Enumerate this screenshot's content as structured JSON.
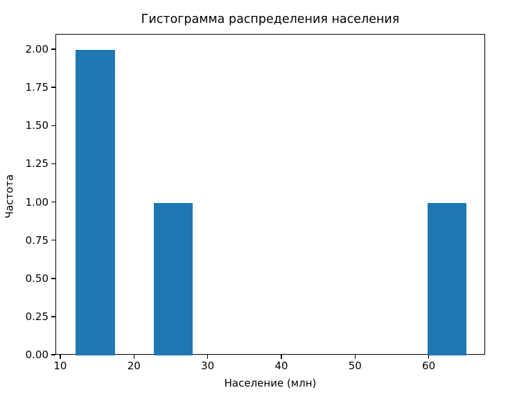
{
  "figure": {
    "title": "Гистограмма распределения населения",
    "xlabel": "Население (млн)",
    "ylabel": "Частота",
    "background_color": "#ffffff",
    "bar_color": "#1f77b4",
    "spine_color": "#000000"
  },
  "chart_data": {
    "type": "bar",
    "subtype": "histogram",
    "title": "Гистограмма распределения населения",
    "xlabel": "Население (млн)",
    "ylabel": "Частота",
    "bin_edges": [
      12.0,
      17.3,
      22.6,
      27.9,
      33.2,
      38.5,
      43.8,
      49.1,
      54.4,
      59.7,
      65.0
    ],
    "counts": [
      2,
      0,
      1,
      0,
      0,
      0,
      0,
      0,
      0,
      1
    ],
    "xlim": [
      9.35,
      67.65
    ],
    "ylim": [
      0,
      2.1
    ],
    "x_ticks": [
      10,
      20,
      30,
      40,
      50,
      60
    ],
    "x_tick_labels": [
      "10",
      "20",
      "30",
      "40",
      "50",
      "60"
    ],
    "y_ticks": [
      0,
      0.25,
      0.5,
      0.75,
      1.0,
      1.25,
      1.5,
      1.75,
      2.0
    ],
    "y_tick_labels": [
      "0.00",
      "0.25",
      "0.50",
      "0.75",
      "1.00",
      "1.25",
      "1.50",
      "1.75",
      "2.00"
    ],
    "grid": false,
    "legend": null,
    "bar_color": "#1f77b4"
  }
}
